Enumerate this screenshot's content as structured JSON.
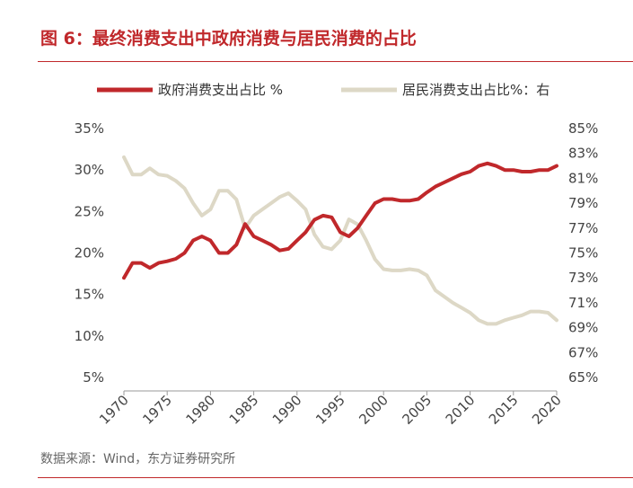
{
  "header": {
    "title": "图 6：最终消费支出中政府消费与居民消费的占比"
  },
  "footer": {
    "source": "数据来源：Wind，东方证券研究所"
  },
  "colors": {
    "accent": "#c0282b",
    "series_gov": "#c0282b",
    "series_res": "#ddd8c6"
  },
  "chart_data": {
    "type": "line",
    "legend_position": "top",
    "grid": false,
    "x_ticks": [
      "1970",
      "1975",
      "1980",
      "1985",
      "1990",
      "1995",
      "2000",
      "2005",
      "2010",
      "2015",
      "2020"
    ],
    "xlim": [
      1970,
      2020
    ],
    "y_left": {
      "ticks": [
        "35%",
        "30%",
        "25%",
        "20%",
        "15%",
        "10%",
        "5%"
      ],
      "ylim": [
        5,
        35
      ]
    },
    "y_right": {
      "ticks": [
        "85%",
        "83%",
        "81%",
        "79%",
        "77%",
        "75%",
        "73%",
        "71%",
        "69%",
        "67%",
        "65%"
      ],
      "ylim": [
        65,
        85
      ]
    },
    "x": [
      1970,
      1971,
      1972,
      1973,
      1974,
      1975,
      1976,
      1977,
      1978,
      1979,
      1980,
      1981,
      1982,
      1983,
      1984,
      1985,
      1986,
      1987,
      1988,
      1989,
      1990,
      1991,
      1992,
      1993,
      1994,
      1995,
      1996,
      1997,
      1998,
      1999,
      2000,
      2001,
      2002,
      2003,
      2004,
      2005,
      2006,
      2007,
      2008,
      2009,
      2010,
      2011,
      2012,
      2013,
      2014,
      2015,
      2016,
      2017,
      2018,
      2019,
      2020
    ],
    "series": [
      {
        "name": "政府消费支出占比 %",
        "axis": "left",
        "values": [
          17.0,
          18.8,
          18.8,
          18.2,
          18.8,
          19.0,
          19.3,
          20.0,
          21.5,
          22.0,
          21.5,
          20.0,
          20.0,
          21.0,
          23.5,
          22.0,
          21.5,
          21.0,
          20.3,
          20.5,
          21.5,
          22.5,
          24.0,
          24.5,
          24.3,
          22.5,
          22.0,
          23.0,
          24.5,
          26.0,
          26.5,
          26.5,
          26.3,
          26.3,
          26.5,
          27.3,
          28.0,
          28.5,
          29.0,
          29.5,
          29.8,
          30.5,
          30.8,
          30.5,
          30.0,
          30.0,
          29.8,
          29.8,
          30.0,
          30.0,
          30.5
        ]
      },
      {
        "name": "居民消费支出占比%：右",
        "axis": "right",
        "values": [
          82.7,
          81.3,
          81.3,
          81.8,
          81.3,
          81.2,
          80.8,
          80.2,
          79.0,
          78.0,
          78.5,
          80.0,
          80.0,
          79.3,
          77.0,
          78.0,
          78.5,
          79.0,
          79.5,
          79.8,
          79.2,
          78.5,
          76.5,
          75.5,
          75.3,
          76.0,
          77.7,
          77.3,
          76.0,
          74.5,
          73.7,
          73.6,
          73.6,
          73.7,
          73.6,
          73.2,
          72.0,
          71.5,
          71.0,
          70.6,
          70.2,
          69.6,
          69.3,
          69.3,
          69.6,
          69.8,
          70.0,
          70.3,
          70.3,
          70.2,
          69.6
        ]
      }
    ]
  }
}
